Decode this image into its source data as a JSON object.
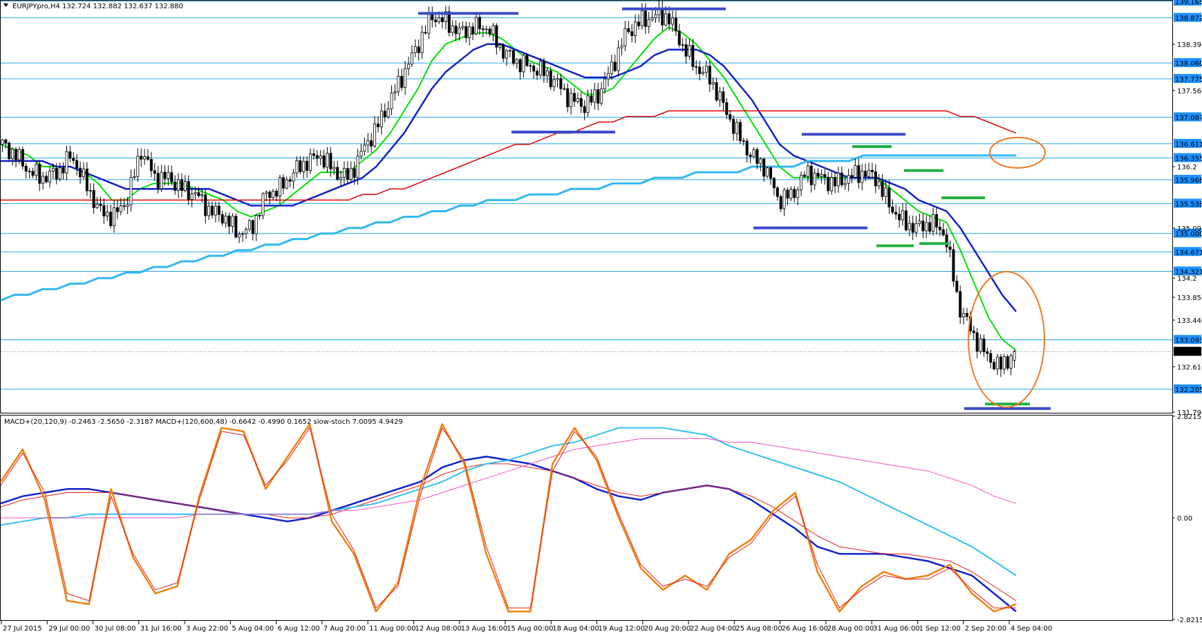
{
  "header": {
    "main": "EURJPYpro,H4  132.724 132.882 132.637 132.880",
    "sub": "MACD+(20,120,9) -0.2463 -2.5650 -2.3187  MACD+(120,600,48) -0.6642 -0.4990 0.1652  slow-stoch 7.0095 4.9429"
  },
  "chart_data": [
    {
      "type": "candlestick",
      "symbol": "EURJPYpro",
      "timeframe": "H4",
      "ohlc_header": {
        "open": 132.724,
        "high": 132.882,
        "low": 132.637,
        "close": 132.88
      },
      "last_price": "132.880",
      "ylim": [
        131.796,
        139.165
      ],
      "y_ticks": [
        "138.396",
        "137.566",
        "136.2",
        "135.096",
        "134.2",
        "133.856",
        "133.446",
        "132.610",
        "131.796"
      ],
      "levels": [
        "139.165",
        "138.872",
        "138.060",
        "137.775",
        "137.087",
        "136.611",
        "136.355",
        "135.966",
        "135.538",
        "135.000",
        "134.671",
        "134.321",
        "133.093",
        "132.205"
      ],
      "x_labels": [
        "27 Jul 2015",
        "29 Jul 00:00",
        "30 Jul 08:00",
        "31 Jul 16:00",
        "3 Aug 22:00",
        "5 Aug 04:00",
        "6 Aug 12:00",
        "7 Aug 20:00",
        "11 Aug 00:00",
        "12 Aug 08:00",
        "13 Aug 16:00",
        "15 Aug 00:00",
        "18 Aug 04:00",
        "19 Aug 12:00",
        "20 Aug 20:00",
        "22 Aug 04:00",
        "25 Aug 08:00",
        "26 Aug 16:00",
        "28 Aug 00:00",
        "31 Aug 06:00",
        "1 Sep 12:00",
        "2 Sep 20:00",
        "4 Sep 04:00"
      ],
      "close_path": [
        136.6,
        136.4,
        136.1,
        136.0,
        136.1,
        136.4,
        135.9,
        135.4,
        135.3,
        135.6,
        136.5,
        136.0,
        136.0,
        135.8,
        135.7,
        135.4,
        135.3,
        135.0,
        135.1,
        135.7,
        135.8,
        136.1,
        136.3,
        136.4,
        136.1,
        136.0,
        136.5,
        136.9,
        137.4,
        137.9,
        138.4,
        138.9,
        138.8,
        138.6,
        138.7,
        138.7,
        138.3,
        138.1,
        138.0,
        137.9,
        137.7,
        137.4,
        137.3,
        137.5,
        138.0,
        138.6,
        138.8,
        138.9,
        138.9,
        138.4,
        138.0,
        137.8,
        137.3,
        136.8,
        136.4,
        136.2,
        135.6,
        135.7,
        136.1,
        136.0,
        135.9,
        136.0,
        136.1,
        136.0,
        135.5,
        135.2,
        135.1,
        135.2,
        135.0,
        133.7,
        133.2,
        132.8,
        132.6,
        132.88
      ],
      "moving_averages": [
        {
          "color": "#00e000",
          "values": [
            136.6,
            136.5,
            136.4,
            136.2,
            136.2,
            136.2,
            136.1,
            135.9,
            135.6,
            135.6,
            135.8,
            135.9,
            135.9,
            135.9,
            135.8,
            135.7,
            135.6,
            135.4,
            135.3,
            135.4,
            135.5,
            135.7,
            135.9,
            136.1,
            136.1,
            136.1,
            136.3,
            136.5,
            136.8,
            137.2,
            137.6,
            138.1,
            138.4,
            138.5,
            138.6,
            138.6,
            138.5,
            138.3,
            138.1,
            138.0,
            137.9,
            137.7,
            137.5,
            137.5,
            137.6,
            137.9,
            138.2,
            138.5,
            138.7,
            138.6,
            138.4,
            138.1,
            137.8,
            137.4,
            137.0,
            136.6,
            136.2,
            136.0,
            136.0,
            136.0,
            136.0,
            136.0,
            136.0,
            136.0,
            135.8,
            135.6,
            135.4,
            135.3,
            135.2,
            134.7,
            134.1,
            133.5,
            133.1,
            132.9
          ]
        },
        {
          "color": "#1020c8",
          "values": [
            136.3,
            136.3,
            136.3,
            136.3,
            136.2,
            136.2,
            136.1,
            136.0,
            135.9,
            135.8,
            135.8,
            135.8,
            135.8,
            135.8,
            135.8,
            135.8,
            135.7,
            135.6,
            135.5,
            135.5,
            135.5,
            135.5,
            135.6,
            135.7,
            135.8,
            135.9,
            136.0,
            136.2,
            136.5,
            136.8,
            137.2,
            137.6,
            137.9,
            138.1,
            138.3,
            138.4,
            138.4,
            138.3,
            138.2,
            138.1,
            138.0,
            137.9,
            137.8,
            137.8,
            137.8,
            137.9,
            138.0,
            138.2,
            138.3,
            138.3,
            138.3,
            138.2,
            138.0,
            137.7,
            137.4,
            137.0,
            136.6,
            136.4,
            136.3,
            136.2,
            136.1,
            136.0,
            136.0,
            136.0,
            135.9,
            135.8,
            135.6,
            135.5,
            135.4,
            135.1,
            134.7,
            134.3,
            133.9,
            133.6
          ]
        },
        {
          "color": "#e00000",
          "values": [
            135.6,
            135.6,
            135.6,
            135.6,
            135.6,
            135.6,
            135.6,
            135.6,
            135.6,
            135.6,
            135.6,
            135.6,
            135.6,
            135.6,
            135.6,
            135.6,
            135.6,
            135.6,
            135.6,
            135.6,
            135.6,
            135.6,
            135.6,
            135.6,
            135.6,
            135.6,
            135.7,
            135.7,
            135.8,
            135.8,
            135.9,
            136.0,
            136.1,
            136.2,
            136.3,
            136.4,
            136.5,
            136.6,
            136.6,
            136.7,
            136.8,
            136.8,
            136.9,
            137.0,
            137.0,
            137.1,
            137.1,
            137.1,
            137.2,
            137.2,
            137.2,
            137.2,
            137.2,
            137.2,
            137.2,
            137.2,
            137.2,
            137.2,
            137.2,
            137.2,
            137.2,
            137.2,
            137.2,
            137.2,
            137.2,
            137.2,
            137.2,
            137.2,
            137.2,
            137.1,
            137.1,
            137.0,
            136.9,
            136.8
          ]
        },
        {
          "color": "#30b8f0",
          "values": [
            133.8,
            133.9,
            133.9,
            134.0,
            134.0,
            134.1,
            134.1,
            134.2,
            134.2,
            134.3,
            134.3,
            134.4,
            134.4,
            134.5,
            134.5,
            134.6,
            134.6,
            134.7,
            134.7,
            134.8,
            134.8,
            134.9,
            134.9,
            135.0,
            135.0,
            135.1,
            135.1,
            135.2,
            135.2,
            135.3,
            135.3,
            135.4,
            135.4,
            135.5,
            135.5,
            135.6,
            135.6,
            135.6,
            135.7,
            135.7,
            135.7,
            135.8,
            135.8,
            135.8,
            135.9,
            135.9,
            135.9,
            136.0,
            136.0,
            136.0,
            136.1,
            136.1,
            136.1,
            136.1,
            136.2,
            136.2,
            136.2,
            136.2,
            136.3,
            136.3,
            136.3,
            136.3,
            136.4,
            136.4,
            136.4,
            136.4,
            136.4,
            136.4,
            136.4,
            136.4,
            136.4,
            136.4,
            136.4,
            136.4
          ]
        }
      ]
    },
    {
      "type": "line",
      "title": "MACD+(20,120,9) -0.2463 -2.5650 -2.3187  MACD+(120,600,48) -0.6642 -0.4990 0.1652  slow-stoch 7.0095 4.9429",
      "ylim": [
        -2.8215,
        2.8215
      ],
      "y_ticks": [
        "2.8215",
        "0.00",
        "-2.8215"
      ],
      "series": [
        {
          "color": "#1020d0",
          "values": [
            0.4,
            0.6,
            0.7,
            0.8,
            0.8,
            0.7,
            0.6,
            0.5,
            0.4,
            0.3,
            0.2,
            0.1,
            0.0,
            -0.1,
            0.0,
            0.2,
            0.4,
            0.6,
            0.8,
            1.0,
            1.4,
            1.6,
            1.7,
            1.6,
            1.5,
            1.3,
            1.1,
            0.8,
            0.6,
            0.5,
            0.7,
            0.8,
            0.9,
            0.8,
            0.5,
            0.1,
            -0.3,
            -0.8,
            -1.0,
            -1.0,
            -1.0,
            -1.1,
            -1.2,
            -1.4,
            -1.6,
            -2.1,
            -2.6
          ]
        },
        {
          "color": "#e02020",
          "values": [
            0.3,
            0.5,
            0.6,
            0.7,
            0.7,
            0.7,
            0.6,
            0.5,
            0.4,
            0.3,
            0.2,
            0.1,
            0.1,
            0.0,
            0.0,
            0.1,
            0.3,
            0.5,
            0.7,
            0.9,
            1.2,
            1.4,
            1.5,
            1.5,
            1.4,
            1.3,
            1.1,
            0.9,
            0.7,
            0.6,
            0.7,
            0.8,
            0.9,
            0.8,
            0.6,
            0.3,
            -0.1,
            -0.5,
            -0.8,
            -0.9,
            -1.0,
            -1.0,
            -1.1,
            -1.2,
            -1.5,
            -1.9,
            -2.3
          ]
        },
        {
          "color": "#30c0f0",
          "values": [
            -0.2,
            -0.1,
            0.0,
            0.0,
            0.1,
            0.1,
            0.1,
            0.1,
            0.1,
            0.1,
            0.1,
            0.1,
            0.1,
            0.1,
            0.1,
            0.2,
            0.3,
            0.4,
            0.6,
            0.8,
            1.0,
            1.3,
            1.5,
            1.6,
            1.8,
            2.0,
            2.1,
            2.3,
            2.5,
            2.5,
            2.5,
            2.4,
            2.3,
            2.0,
            1.8,
            1.6,
            1.4,
            1.2,
            1.0,
            0.7,
            0.4,
            0.1,
            -0.2,
            -0.5,
            -0.8,
            -1.2,
            -1.6
          ]
        },
        {
          "color": "#f050c0",
          "values": [
            0.0,
            0.0,
            0.0,
            0.0,
            0.0,
            0.0,
            0.0,
            0.0,
            0.0,
            0.1,
            0.1,
            0.1,
            0.1,
            0.1,
            0.1,
            0.2,
            0.2,
            0.3,
            0.4,
            0.5,
            0.7,
            0.9,
            1.1,
            1.3,
            1.5,
            1.7,
            1.9,
            2.0,
            2.1,
            2.2,
            2.2,
            2.2,
            2.2,
            2.1,
            2.1,
            2.0,
            1.9,
            1.8,
            1.7,
            1.6,
            1.5,
            1.4,
            1.3,
            1.1,
            0.9,
            0.6,
            0.4
          ]
        },
        {
          "color": "#f08010",
          "values": [
            1.0,
            1.9,
            0.5,
            -2.3,
            -2.4,
            0.8,
            -1.1,
            -2.1,
            -1.9,
            0.6,
            2.5,
            2.4,
            0.8,
            1.7,
            2.6,
            -0.1,
            -1.0,
            -2.6,
            -1.8,
            0.8,
            2.6,
            1.5,
            -1.0,
            -2.6,
            -2.6,
            1.5,
            2.5,
            1.6,
            0.0,
            -1.4,
            -2.0,
            -1.6,
            -2.0,
            -1.0,
            -0.6,
            0.2,
            0.7,
            -1.5,
            -2.6,
            -1.9,
            -1.5,
            -1.7,
            -1.6,
            -1.3,
            -2.1,
            -2.6,
            -2.4
          ]
        },
        {
          "color": "#e02020",
          "values": [
            0.9,
            1.8,
            0.7,
            -2.1,
            -2.3,
            0.6,
            -1.0,
            -2.0,
            -1.8,
            0.5,
            2.4,
            2.3,
            0.9,
            1.6,
            2.5,
            0.1,
            -0.9,
            -2.5,
            -1.9,
            0.6,
            2.5,
            1.6,
            -0.8,
            -2.5,
            -2.5,
            1.3,
            2.4,
            1.7,
            0.1,
            -1.3,
            -1.9,
            -1.7,
            -1.9,
            -1.1,
            -0.7,
            0.1,
            0.6,
            -1.3,
            -2.5,
            -2.0,
            -1.6,
            -1.7,
            -1.7,
            -1.4,
            -2.0,
            -2.5,
            -2.5
          ]
        }
      ]
    }
  ]
}
